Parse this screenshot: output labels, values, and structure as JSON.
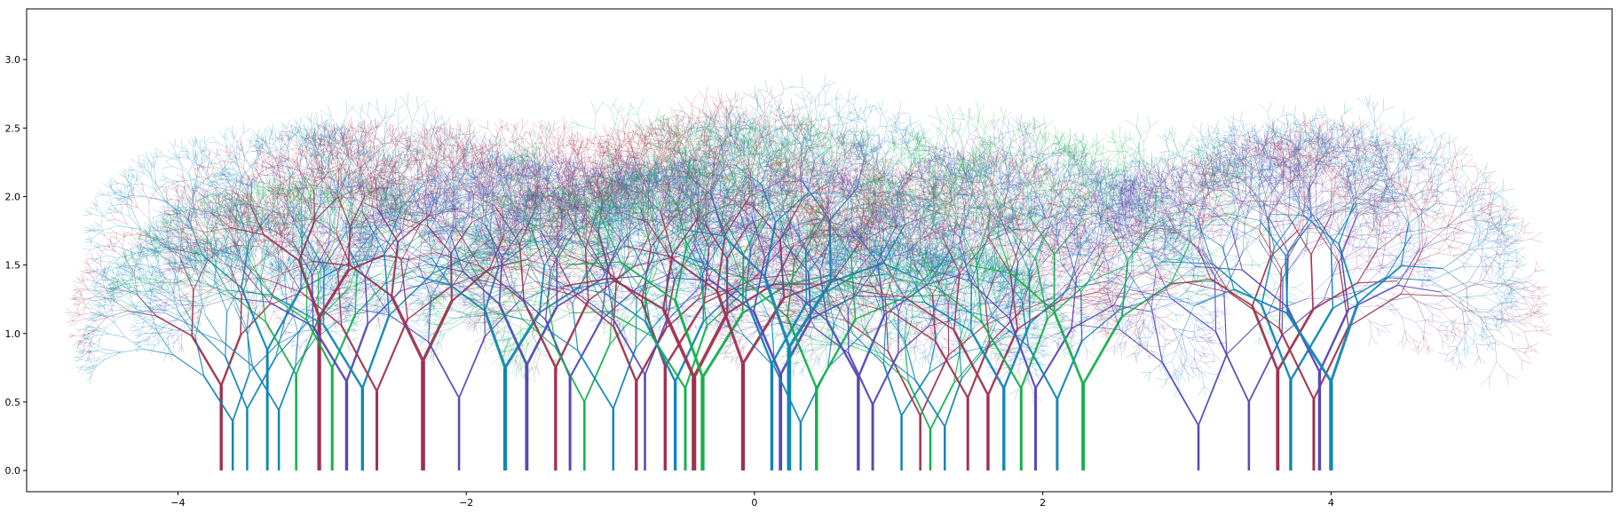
{
  "chart_data": {
    "type": "scatter",
    "title": "",
    "xlabel": "",
    "ylabel": "",
    "xlim": [
      -5.05,
      5.95
    ],
    "ylim": [
      -0.155,
      3.37
    ],
    "xticks": [
      -4,
      -2,
      0,
      2,
      4
    ],
    "xtick_labels": [
      "−4",
      "−2",
      "0",
      "2",
      "4"
    ],
    "yticks": [
      0.0,
      0.5,
      1.0,
      1.5,
      2.0,
      2.5,
      3.0
    ],
    "ytick_labels": [
      "0.0",
      "0.5",
      "1.0",
      "1.5",
      "2.0",
      "2.5",
      "3.0"
    ],
    "grid": false,
    "legend": "none",
    "palette": {
      "crimson": "#a0304c",
      "teal": "#1086b6",
      "green": "#13b04c",
      "indigo": "#5548b8"
    },
    "trees": [
      {
        "x": -3.7,
        "trunk": 0.62,
        "width": 0.04,
        "color": "crimson",
        "spread": 1.0
      },
      {
        "x": -3.62,
        "trunk": 0.36,
        "width": 0.02,
        "color": "teal",
        "spread": 0.8
      },
      {
        "x": -3.52,
        "trunk": 0.45,
        "width": 0.022,
        "color": "teal",
        "spread": 0.8
      },
      {
        "x": -3.38,
        "trunk": 0.88,
        "width": 0.035,
        "color": "teal",
        "spread": 1.0
      },
      {
        "x": -3.3,
        "trunk": 0.44,
        "width": 0.022,
        "color": "teal",
        "spread": 0.7
      },
      {
        "x": -3.18,
        "trunk": 0.7,
        "width": 0.03,
        "color": "green",
        "spread": 0.9
      },
      {
        "x": -3.02,
        "trunk": 1.12,
        "width": 0.05,
        "color": "crimson",
        "spread": 1.2
      },
      {
        "x": -2.93,
        "trunk": 0.75,
        "width": 0.035,
        "color": "green",
        "spread": 0.9
      },
      {
        "x": -2.83,
        "trunk": 0.65,
        "width": 0.04,
        "color": "indigo",
        "spread": 1.0
      },
      {
        "x": -2.72,
        "trunk": 0.6,
        "width": 0.04,
        "color": "teal",
        "spread": 1.0
      },
      {
        "x": -2.62,
        "trunk": 0.58,
        "width": 0.035,
        "color": "crimson",
        "spread": 1.0
      },
      {
        "x": -2.3,
        "trunk": 0.8,
        "width": 0.055,
        "color": "crimson",
        "spread": 1.3
      },
      {
        "x": -2.05,
        "trunk": 0.53,
        "width": 0.028,
        "color": "indigo",
        "spread": 0.9
      },
      {
        "x": -1.73,
        "trunk": 0.75,
        "width": 0.05,
        "color": "teal",
        "spread": 1.1
      },
      {
        "x": -1.58,
        "trunk": 0.77,
        "width": 0.045,
        "color": "indigo",
        "spread": 1.1
      },
      {
        "x": -1.38,
        "trunk": 0.75,
        "width": 0.04,
        "color": "crimson",
        "spread": 1.1
      },
      {
        "x": -1.28,
        "trunk": 0.68,
        "width": 0.035,
        "color": "indigo",
        "spread": 1.0
      },
      {
        "x": -1.18,
        "trunk": 0.5,
        "width": 0.03,
        "color": "green",
        "spread": 0.9
      },
      {
        "x": -0.98,
        "trunk": 0.45,
        "width": 0.025,
        "color": "teal",
        "spread": 0.9
      },
      {
        "x": -0.82,
        "trunk": 0.65,
        "width": 0.04,
        "color": "crimson",
        "spread": 1.0
      },
      {
        "x": -0.76,
        "trunk": 0.7,
        "width": 0.03,
        "color": "indigo",
        "spread": 1.0
      },
      {
        "x": -0.62,
        "trunk": 0.76,
        "width": 0.04,
        "color": "crimson",
        "spread": 1.1
      },
      {
        "x": -0.55,
        "trunk": 0.65,
        "width": 0.04,
        "color": "teal",
        "spread": 1.0
      },
      {
        "x": -0.48,
        "trunk": 0.6,
        "width": 0.035,
        "color": "green",
        "spread": 1.0
      },
      {
        "x": -0.42,
        "trunk": 0.68,
        "width": 0.06,
        "color": "crimson",
        "spread": 1.3
      },
      {
        "x": -0.36,
        "trunk": 0.68,
        "width": 0.05,
        "color": "green",
        "spread": 1.3
      },
      {
        "x": -0.08,
        "trunk": 0.78,
        "width": 0.05,
        "color": "crimson",
        "spread": 1.2
      },
      {
        "x": 0.12,
        "trunk": 0.78,
        "width": 0.04,
        "color": "teal",
        "spread": 1.1
      },
      {
        "x": 0.18,
        "trunk": 0.7,
        "width": 0.045,
        "color": "indigo",
        "spread": 1.2
      },
      {
        "x": 0.24,
        "trunk": 0.9,
        "width": 0.055,
        "color": "teal",
        "spread": 1.4
      },
      {
        "x": 0.32,
        "trunk": 0.35,
        "width": 0.02,
        "color": "teal",
        "spread": 0.8
      },
      {
        "x": 0.43,
        "trunk": 0.6,
        "width": 0.04,
        "color": "green",
        "spread": 1.1
      },
      {
        "x": 0.72,
        "trunk": 0.68,
        "width": 0.04,
        "color": "indigo",
        "spread": 1.1
      },
      {
        "x": 0.82,
        "trunk": 0.48,
        "width": 0.035,
        "color": "indigo",
        "spread": 1.0
      },
      {
        "x": 1.02,
        "trunk": 0.4,
        "width": 0.025,
        "color": "teal",
        "spread": 0.9
      },
      {
        "x": 1.15,
        "trunk": 0.4,
        "width": 0.028,
        "color": "crimson",
        "spread": 0.9
      },
      {
        "x": 1.22,
        "trunk": 0.3,
        "width": 0.025,
        "color": "green",
        "spread": 0.8
      },
      {
        "x": 1.32,
        "trunk": 0.32,
        "width": 0.02,
        "color": "teal",
        "spread": 0.8
      },
      {
        "x": 1.48,
        "trunk": 0.53,
        "width": 0.035,
        "color": "crimson",
        "spread": 1.0
      },
      {
        "x": 1.62,
        "trunk": 0.55,
        "width": 0.04,
        "color": "crimson",
        "spread": 1.1
      },
      {
        "x": 1.73,
        "trunk": 0.6,
        "width": 0.04,
        "color": "teal",
        "spread": 1.1
      },
      {
        "x": 1.85,
        "trunk": 0.6,
        "width": 0.035,
        "color": "green",
        "spread": 1.1
      },
      {
        "x": 1.95,
        "trunk": 0.6,
        "width": 0.035,
        "color": "indigo",
        "spread": 1.1
      },
      {
        "x": 2.1,
        "trunk": 0.52,
        "width": 0.035,
        "color": "teal",
        "spread": 1.1
      },
      {
        "x": 2.28,
        "trunk": 0.63,
        "width": 0.045,
        "color": "green",
        "spread": 1.2
      },
      {
        "x": 3.08,
        "trunk": 0.33,
        "width": 0.018,
        "color": "indigo",
        "spread": 1.0
      },
      {
        "x": 3.43,
        "trunk": 0.5,
        "width": 0.03,
        "color": "indigo",
        "spread": 1.2
      },
      {
        "x": 3.63,
        "trunk": 0.73,
        "width": 0.045,
        "color": "crimson",
        "spread": 1.3
      },
      {
        "x": 3.72,
        "trunk": 0.66,
        "width": 0.04,
        "color": "teal",
        "spread": 1.4
      },
      {
        "x": 3.88,
        "trunk": 0.52,
        "width": 0.035,
        "color": "crimson",
        "spread": 1.2
      },
      {
        "x": 3.92,
        "trunk": 0.72,
        "width": 0.04,
        "color": "indigo",
        "spread": 1.3
      },
      {
        "x": 4.0,
        "trunk": 0.65,
        "width": 0.05,
        "color": "teal",
        "spread": 1.6
      }
    ]
  }
}
